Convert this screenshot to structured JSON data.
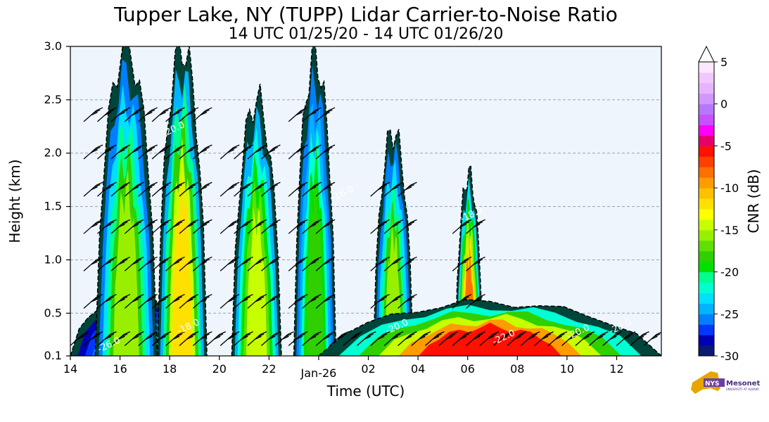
{
  "title": "Tupper Lake, NY (TUPP) Lidar Carrier-to-Noise Ratio",
  "subtitle": "14 UTC 01/25/20 - 14 UTC 01/26/20",
  "chart_data": {
    "type": "heatmap",
    "xlabel": "Time (UTC)",
    "ylabel": "Height (km)",
    "x_range_hours": [
      14,
      37.8
    ],
    "xticks": [
      "14",
      "16",
      "18",
      "20",
      "22",
      "Jan-26",
      "02",
      "04",
      "06",
      "08",
      "10",
      "12"
    ],
    "xtick_hours": [
      14,
      16,
      18,
      20,
      22,
      24,
      26,
      28,
      30,
      32,
      34,
      36
    ],
    "ylim": [
      0.1,
      3.0
    ],
    "yticks": [
      0.1,
      0.5,
      1.0,
      1.5,
      2.0,
      2.5,
      3.0
    ],
    "ytick_labels": [
      "0.1",
      "0.5",
      "1.0",
      "1.5",
      "2.0",
      "2.5",
      "3.0"
    ],
    "grid": "horizontal dashed",
    "colorbar": {
      "label": "CNR (dB)",
      "range": [
        -30,
        5
      ],
      "ticks": [
        5,
        0,
        -5,
        -10,
        -15,
        -20,
        -25,
        -30
      ],
      "tick_labels": [
        "5",
        "0",
        "-5",
        "-10",
        "-15",
        "-20",
        "-25",
        "-30"
      ],
      "colors": [
        "#0a1a6e",
        "#0000b4",
        "#0037ff",
        "#0080ff",
        "#00b4ff",
        "#00e0ff",
        "#00ffd2",
        "#00ff8c",
        "#00e000",
        "#30d000",
        "#60e000",
        "#98f000",
        "#c8ff00",
        "#ffff00",
        "#ffe000",
        "#ffc000",
        "#ff9c00",
        "#ff7000",
        "#ff4000",
        "#ff1000",
        "#e6006e",
        "#ff00ff",
        "#c850ff",
        "#b478ff",
        "#d296ff",
        "#e6b4ff",
        "#f0c8ff",
        "#ffe6ff"
      ]
    },
    "contour_labels": [
      {
        "text": "-26.0",
        "t": 15.6,
        "h": 0.18
      },
      {
        "text": "-20.0",
        "t": 18.2,
        "h": 2.2
      },
      {
        "text": "-18.0",
        "t": 18.8,
        "h": 0.35
      },
      {
        "text": "-16.0",
        "t": 25.0,
        "h": 1.6
      },
      {
        "text": "-20.0",
        "t": 27.2,
        "h": 0.35
      },
      {
        "text": "-18.0",
        "t": 30.2,
        "h": 1.4
      },
      {
        "text": "-22.0",
        "t": 31.5,
        "h": 0.25
      },
      {
        "text": "-20.0",
        "t": 34.5,
        "h": 0.3
      },
      {
        "text": "-20.0",
        "t": 36.2,
        "h": 0.35
      }
    ],
    "cloud_features": [
      {
        "t0": 14.0,
        "t1": 19.0,
        "top": 0.7,
        "peak": -24,
        "note": "low layer"
      },
      {
        "t0": 15.0,
        "t1": 17.5,
        "top": 3.0,
        "peak": -16
      },
      {
        "t0": 17.5,
        "t1": 19.5,
        "top": 3.0,
        "peak": -12
      },
      {
        "t0": 20.5,
        "t1": 22.5,
        "top": 2.5,
        "peak": -14
      },
      {
        "t0": 23.0,
        "t1": 24.7,
        "top": 2.9,
        "peak": -18
      },
      {
        "t0": 26.2,
        "t1": 27.8,
        "top": 2.2,
        "peak": -16
      },
      {
        "t0": 29.5,
        "t1": 30.6,
        "top": 1.8,
        "peak": -8
      },
      {
        "t0": 24.0,
        "t1": 37.8,
        "top": 0.6,
        "peak": -6,
        "note": "low layer"
      }
    ]
  }
}
